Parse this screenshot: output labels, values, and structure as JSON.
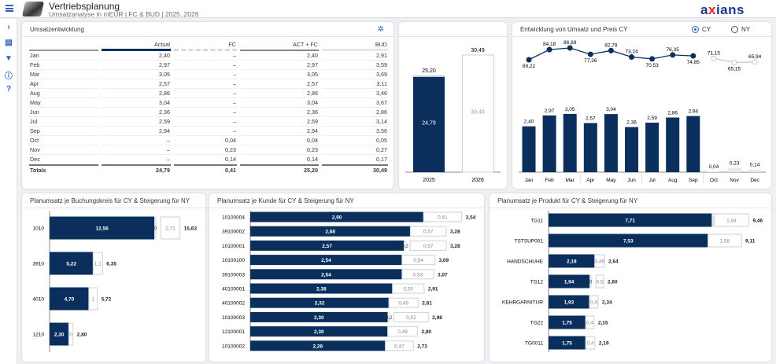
{
  "header": {
    "title": "Vertriebsplanung",
    "subtitle": "Umsatzanalyse in mEUR | FC & BUD | 2025..2026",
    "logo_text": "axians",
    "menu_icon": "hamburger-icon"
  },
  "nav": {
    "icons": [
      "expand-icon",
      "comment-icon",
      "filter-icon",
      "info-icon",
      "help-icon"
    ]
  },
  "colors": {
    "primary": "#0a2f5c",
    "light": "#c9d2de",
    "accent": "#2a63c6"
  },
  "table": {
    "title": "Umsatzentwicklung",
    "settings_icon": "settings-icon",
    "columns": [
      "",
      "Actual",
      "FC",
      "ACT + FC",
      "BUD"
    ],
    "rows": [
      [
        "Jan",
        "2,40",
        "–",
        "2,40",
        "2,91"
      ],
      [
        "Feb",
        "2,97",
        "–",
        "2,97",
        "3,59"
      ],
      [
        "Mar",
        "3,05",
        "–",
        "3,05",
        "3,69"
      ],
      [
        "Apr",
        "2,57",
        "–",
        "2,57",
        "3,11"
      ],
      [
        "Aug",
        "2,86",
        "–",
        "2,86",
        "3,46"
      ],
      [
        "May",
        "3,04",
        "–",
        "3,04",
        "3,67"
      ],
      [
        "Jun",
        "2,36",
        "–",
        "2,36",
        "2,86"
      ],
      [
        "Jul",
        "2,59",
        "–",
        "2,59",
        "3,14"
      ],
      [
        "Sep",
        "2,94",
        "–",
        "2,94",
        "3,56"
      ],
      [
        "Oct",
        "–",
        "0,04",
        "0,04",
        "0,05"
      ],
      [
        "Nov",
        "–",
        "0,23",
        "0,23",
        "0,27"
      ],
      [
        "Dec",
        "–",
        "0,14",
        "0,14",
        "0,17"
      ]
    ],
    "totals": [
      "Totals",
      "24,79",
      "0,41",
      "25,20",
      "30,49"
    ]
  },
  "chart_data": [
    {
      "type": "bar",
      "categories": [
        "2025",
        "2026"
      ],
      "series": [
        {
          "values": [
            24.79,
            null
          ]
        },
        {
          "values": [
            0.41,
            null
          ]
        },
        {
          "values": [
            null,
            30.49
          ]
        }
      ],
      "labels_total": [
        "25,20",
        "30,49"
      ],
      "labels_inner": [
        "24,79",
        "30,49"
      ]
    },
    {
      "type": "bar+line",
      "title": "Entwicklung von Umsatz und Preis CY",
      "options": [
        "CY",
        "NY"
      ],
      "selected": "CY",
      "categories": [
        "Jan",
        "Feb",
        "Mar",
        "Apr",
        "May",
        "Jun",
        "Jul",
        "Aug",
        "Sep",
        "Oct",
        "Nov",
        "Dec"
      ],
      "bars": [
        2.4,
        2.97,
        3.05,
        2.57,
        3.04,
        2.36,
        2.59,
        2.86,
        2.94,
        0.04,
        0.23,
        0.14
      ],
      "bar_labels": [
        "2,40",
        "2,97",
        "3,05",
        "2,57",
        "3,04",
        "2,36",
        "2,59",
        "2,86",
        "2,94",
        "0,04",
        "0,23",
        "0,14"
      ],
      "line": [
        69.22,
        84.18,
        86.69,
        77.26,
        82.78,
        73.24,
        70.53,
        76.35,
        74.85,
        71.15,
        65.15,
        65.94
      ],
      "line_labels": [
        "69,22",
        "84,18",
        "86,69",
        "77,26",
        "82,78",
        "73,24",
        "70,53",
        "76,35",
        "74,85",
        "71,15",
        "65,15",
        "65,94"
      ]
    },
    {
      "type": "stacked-bar-horizontal",
      "title": "Planumsatz je Buchungskreis für CY & Steigerung für NY",
      "rows": [
        {
          "cat": "1010",
          "cy": 12.56,
          "cy_label": "12,56",
          "fc": true,
          "fc_label": "0",
          "ny_label": "2,71",
          "total": 15.63,
          "total_label": "15,63"
        },
        {
          "cat": "3910",
          "cy": 5.22,
          "cy_label": "5,22",
          "fc": false,
          "fc_label": "",
          "ny_label": "1,1",
          "total": 6.35,
          "total_label": "6,35"
        },
        {
          "cat": "4010",
          "cy": 4.7,
          "cy_label": "4,70",
          "fc": false,
          "fc_label": "",
          "ny_label": "1",
          "total": 5.72,
          "total_label": "5,72"
        },
        {
          "cat": "1210",
          "cy": 2.3,
          "cy_label": "2,30",
          "fc": false,
          "fc_label": "",
          "ny_label": "0",
          "total": 2.8,
          "total_label": "2,80"
        }
      ]
    },
    {
      "type": "stacked-bar-horizontal",
      "title": "Planumsatz je Kunde für CY & Steigerung für NY",
      "rows": [
        {
          "cat": "10100004",
          "cy": 2.9,
          "cy_label": "2,90",
          "fc": false,
          "fc_label": "",
          "ny_label": "0,61",
          "total": 3.54,
          "total_label": "3,54"
        },
        {
          "cat": "39100002",
          "cy": 2.68,
          "cy_label": "2,68",
          "fc": false,
          "fc_label": "",
          "ny_label": "0,57",
          "total": 3.28,
          "total_label": "3,28"
        },
        {
          "cat": "10100001",
          "cy": 2.57,
          "cy_label": "2,57",
          "fc": true,
          "fc_label": "0,2",
          "ny_label": "0,57",
          "total": 3.28,
          "total_label": "3,28"
        },
        {
          "cat": "10100100",
          "cy": 2.54,
          "cy_label": "2,54",
          "fc": false,
          "fc_label": "",
          "ny_label": "0,54",
          "total": 3.09,
          "total_label": "3,09"
        },
        {
          "cat": "39100003",
          "cy": 2.54,
          "cy_label": "2,54",
          "fc": false,
          "fc_label": "",
          "ny_label": "0,53",
          "total": 3.07,
          "total_label": "3,07"
        },
        {
          "cat": "40100001",
          "cy": 2.38,
          "cy_label": "2,38",
          "fc": false,
          "fc_label": "",
          "ny_label": "0,50",
          "total": 2.91,
          "total_label": "2,91"
        },
        {
          "cat": "40100002",
          "cy": 2.32,
          "cy_label": "2,32",
          "fc": false,
          "fc_label": "",
          "ny_label": "0,49",
          "total": 2.81,
          "total_label": "2,81"
        },
        {
          "cat": "10100003",
          "cy": 2.3,
          "cy_label": "2,30",
          "fc": true,
          "fc_label": "0,2",
          "ny_label": "0,52",
          "total": 2.98,
          "total_label": "2,98"
        },
        {
          "cat": "12100001",
          "cy": 2.3,
          "cy_label": "2,30",
          "fc": false,
          "fc_label": "",
          "ny_label": "0,49",
          "total": 2.8,
          "total_label": "2,80"
        },
        {
          "cat": "10100002",
          "cy": 2.26,
          "cy_label": "2,26",
          "fc": false,
          "fc_label": "",
          "ny_label": "0,47",
          "total": 2.73,
          "total_label": "2,73"
        }
      ]
    },
    {
      "type": "stacked-bar-horizontal",
      "title": "Planumsatz je Produkt für CY & Steigerung für NY",
      "rows": [
        {
          "cat": "TG11",
          "cy": 7.71,
          "cy_label": "7,71",
          "fc": true,
          "fc_label": "",
          "ny_label": "1,64",
          "total": 9.46,
          "total_label": "9,46"
        },
        {
          "cat": "TSTSUP001",
          "cy": 7.53,
          "cy_label": "7,53",
          "fc": false,
          "fc_label": "",
          "ny_label": "1,58",
          "total": 9.11,
          "total_label": "9,11"
        },
        {
          "cat": "HANDSCHUHE",
          "cy": 2.18,
          "cy_label": "2,18",
          "fc": false,
          "fc_label": "",
          "ny_label": "0,46",
          "total": 2.64,
          "total_label": "2,64"
        },
        {
          "cat": "TG12",
          "cy": 1.94,
          "cy_label": "1,94",
          "fc": true,
          "fc_label": "0",
          "ny_label": "0,5",
          "total": 2.6,
          "total_label": "2,60"
        },
        {
          "cat": "KEHRGARNITUR",
          "cy": 1.93,
          "cy_label": "1,93",
          "fc": false,
          "fc_label": "",
          "ny_label": "0,4",
          "total": 2.34,
          "total_label": "2,34"
        },
        {
          "cat": "TG22",
          "cy": 1.75,
          "cy_label": "1,75",
          "fc": false,
          "fc_label": "",
          "ny_label": "0,4",
          "total": 2.15,
          "total_label": "2,15"
        },
        {
          "cat": "TG0011",
          "cy": 1.75,
          "cy_label": "1,75",
          "fc": false,
          "fc_label": "",
          "ny_label": "0,4",
          "total": 2.19,
          "total_label": "2,19"
        }
      ]
    }
  ]
}
